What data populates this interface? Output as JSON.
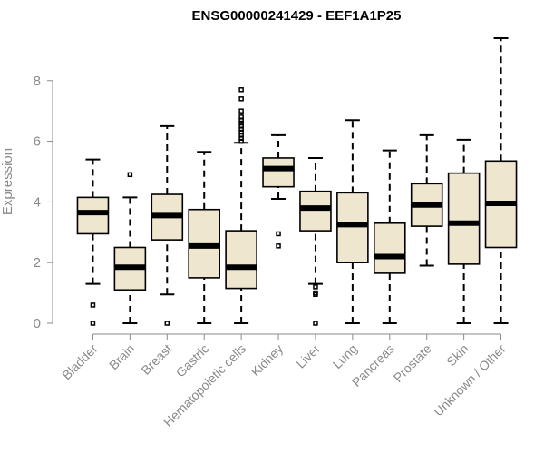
{
  "chart_data": {
    "type": "boxplot",
    "title": "ENSG00000241429 - EEF1A1P25",
    "xlabel": "",
    "ylabel": "Expression",
    "ylim": [
      0,
      9.6
    ],
    "yticks": [
      0,
      2,
      4,
      6,
      8
    ],
    "grid": false,
    "categories": [
      "Bladder",
      "Brain",
      "Breast",
      "Gastric",
      "Hematopoietic cells",
      "Kidney",
      "Liver",
      "Lung",
      "Pancreas",
      "Prostate",
      "Skin",
      "Unknown / Other"
    ],
    "boxes": [
      {
        "name": "Bladder",
        "whisker_low": 1.3,
        "q1": 2.95,
        "median": 3.65,
        "q3": 4.15,
        "whisker_high": 5.4,
        "outliers": [
          0.6,
          0.0
        ]
      },
      {
        "name": "Brain",
        "whisker_low": 0.0,
        "q1": 1.1,
        "median": 1.85,
        "q3": 2.5,
        "whisker_high": 4.15,
        "outliers": [
          4.9
        ]
      },
      {
        "name": "Breast",
        "whisker_low": 0.95,
        "q1": 2.75,
        "median": 3.55,
        "q3": 4.25,
        "whisker_high": 6.5,
        "outliers": [
          0.0
        ]
      },
      {
        "name": "Gastric",
        "whisker_low": 0.0,
        "q1": 1.5,
        "median": 2.55,
        "q3": 3.75,
        "whisker_high": 5.65,
        "outliers": []
      },
      {
        "name": "Hematopoietic cells",
        "whisker_low": 0.0,
        "q1": 1.15,
        "median": 1.85,
        "q3": 3.05,
        "whisker_high": 5.95,
        "outliers": [
          6.0,
          6.1,
          6.2,
          6.3,
          6.4,
          6.5,
          6.6,
          6.7,
          6.8,
          7.0,
          7.4,
          7.7
        ]
      },
      {
        "name": "Kidney",
        "whisker_low": 4.1,
        "q1": 4.5,
        "median": 5.1,
        "q3": 5.45,
        "whisker_high": 6.2,
        "outliers": [
          2.95,
          2.55
        ]
      },
      {
        "name": "Liver",
        "whisker_low": 1.3,
        "q1": 3.05,
        "median": 3.8,
        "q3": 4.35,
        "whisker_high": 5.45,
        "outliers": [
          1.2,
          1.0,
          0.95,
          0.0
        ]
      },
      {
        "name": "Lung",
        "whisker_low": 0.0,
        "q1": 2.0,
        "median": 3.25,
        "q3": 4.3,
        "whisker_high": 6.7,
        "outliers": []
      },
      {
        "name": "Pancreas",
        "whisker_low": 0.0,
        "q1": 1.65,
        "median": 2.2,
        "q3": 3.3,
        "whisker_high": 5.7,
        "outliers": []
      },
      {
        "name": "Prostate",
        "whisker_low": 1.9,
        "q1": 3.2,
        "median": 3.9,
        "q3": 4.6,
        "whisker_high": 6.2,
        "outliers": []
      },
      {
        "name": "Skin",
        "whisker_low": 0.0,
        "q1": 1.95,
        "median": 3.3,
        "q3": 4.95,
        "whisker_high": 6.05,
        "outliers": []
      },
      {
        "name": "Unknown / Other",
        "whisker_low": 0.0,
        "q1": 2.5,
        "median": 3.95,
        "q3": 5.35,
        "whisker_high": 9.4,
        "outliers": []
      }
    ]
  }
}
